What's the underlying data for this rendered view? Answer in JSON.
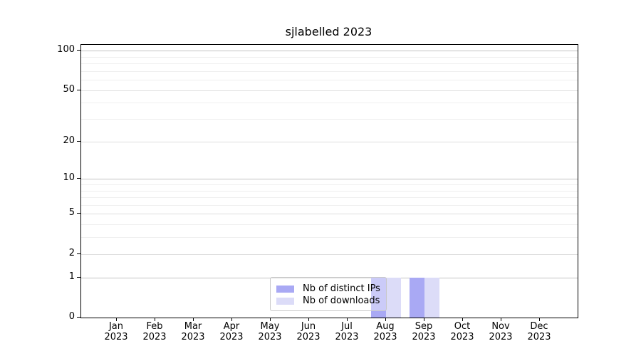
{
  "title": "sjlabelled 2023",
  "chart_data": {
    "type": "bar",
    "title": "sjlabelled 2023",
    "categories": [
      "Jan 2023",
      "Feb 2023",
      "Mar 2023",
      "Apr 2023",
      "May 2023",
      "Jun 2023",
      "Jul 2023",
      "Aug 2023",
      "Sep 2023",
      "Oct 2023",
      "Nov 2023",
      "Dec 2023"
    ],
    "series": [
      {
        "name": "Nb of distinct IPs",
        "color": "#a9a9f4",
        "values": [
          0,
          0,
          0,
          0,
          0,
          0,
          0,
          1,
          1,
          0,
          0,
          0
        ]
      },
      {
        "name": "Nb of downloads",
        "color": "#dcdcf8",
        "values": [
          0,
          0,
          0,
          0,
          0,
          0,
          0,
          1,
          1,
          0,
          0,
          0
        ]
      }
    ],
    "xlabel": "",
    "ylabel": "",
    "yscale": "log1p",
    "ylim": [
      0,
      110
    ],
    "yticks": [
      0,
      1,
      2,
      5,
      10,
      20,
      50,
      100
    ],
    "major_grid_values": [
      1,
      10,
      100
    ],
    "mid_grid_values": [
      2,
      5,
      20,
      50
    ],
    "minor_grid_values": [
      3,
      4,
      6,
      7,
      8,
      9,
      30,
      40,
      60,
      70,
      80,
      90
    ],
    "grid": true,
    "legend_position": "lower center"
  }
}
